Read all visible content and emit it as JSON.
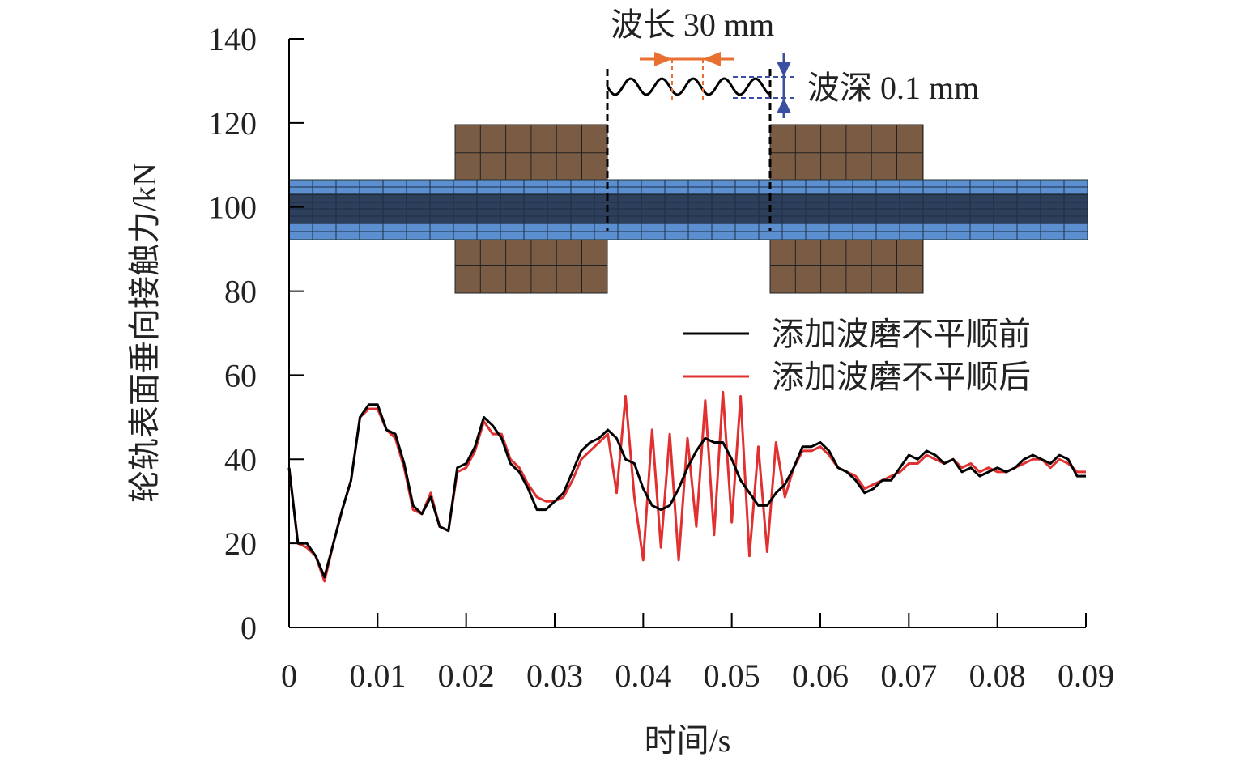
{
  "chart_data": {
    "type": "line",
    "xlabel": "时间/s",
    "ylabel": "轮轨表面垂向接触力/kN",
    "annotations": [
      "波长 30 mm",
      "波深 0.1 mm"
    ],
    "x": [
      0,
      0.001,
      0.002,
      0.003,
      0.004,
      0.005,
      0.006,
      0.007,
      0.008,
      0.009,
      0.01,
      0.011,
      0.012,
      0.013,
      0.014,
      0.015,
      0.016,
      0.017,
      0.018,
      0.019,
      0.02,
      0.021,
      0.022,
      0.023,
      0.024,
      0.025,
      0.026,
      0.027,
      0.028,
      0.029,
      0.03,
      0.031,
      0.032,
      0.033,
      0.034,
      0.035,
      0.036,
      0.037,
      0.038,
      0.039,
      0.04,
      0.041,
      0.042,
      0.043,
      0.044,
      0.045,
      0.046,
      0.047,
      0.048,
      0.049,
      0.05,
      0.051,
      0.052,
      0.053,
      0.054,
      0.055,
      0.056,
      0.057,
      0.058,
      0.059,
      0.06,
      0.061,
      0.062,
      0.063,
      0.064,
      0.065,
      0.066,
      0.067,
      0.068,
      0.069,
      0.07,
      0.071,
      0.072,
      0.073,
      0.074,
      0.075,
      0.076,
      0.077,
      0.078,
      0.079,
      0.08,
      0.081,
      0.082,
      0.083,
      0.084,
      0.085,
      0.086,
      0.087,
      0.088,
      0.089,
      0.09
    ],
    "series": [
      {
        "name": "添加波磨不平顺前",
        "color": "#000000",
        "values": [
          38,
          20,
          20,
          17,
          12,
          20,
          28,
          35,
          50,
          53,
          53,
          47,
          46,
          39,
          29,
          27,
          31,
          24,
          23,
          38,
          39,
          43,
          50,
          48,
          45,
          39,
          37,
          33,
          28,
          28,
          30,
          32,
          37,
          42,
          44,
          45,
          47,
          45,
          40,
          39,
          33,
          29,
          28,
          29,
          33,
          38,
          42,
          45,
          44,
          44,
          40,
          35,
          32,
          29,
          29,
          32,
          34,
          38,
          43,
          43,
          44,
          42,
          38,
          37,
          35,
          32,
          33,
          35,
          35,
          38,
          41,
          40,
          42,
          41,
          39,
          40,
          37,
          38,
          36,
          37,
          38,
          37,
          38,
          40,
          41,
          40,
          39,
          41,
          40,
          36,
          36
        ]
      },
      {
        "name": "添加波磨不平顺后",
        "color": "#e03030",
        "values": [
          38,
          20,
          19,
          17,
          11,
          20,
          28,
          35,
          50,
          52,
          52,
          47,
          45,
          38,
          28,
          27,
          32,
          24,
          23,
          37,
          38,
          42,
          49,
          46,
          46,
          40,
          38,
          34,
          31,
          30,
          30,
          31,
          35,
          40,
          42,
          44,
          46,
          32,
          55,
          31,
          16,
          47,
          19,
          46,
          16,
          45,
          24,
          54,
          22,
          56,
          25,
          55,
          17,
          43,
          18,
          44,
          31,
          38,
          42,
          42,
          43,
          41,
          38,
          37,
          36,
          33,
          34,
          35,
          36,
          37,
          39,
          39,
          41,
          40,
          39,
          40,
          38,
          39,
          37,
          38,
          37,
          37,
          38,
          39,
          40,
          40,
          38,
          40,
          39,
          37,
          37
        ]
      }
    ],
    "xlim": [
      0,
      0.09
    ],
    "xticks": [
      0,
      0.01,
      0.02,
      0.03,
      0.04,
      0.05,
      0.06,
      0.07,
      0.08,
      0.09
    ],
    "ylim": [
      0,
      140
    ],
    "yticks": [
      0,
      20,
      40,
      60,
      80,
      100,
      120,
      140
    ]
  }
}
